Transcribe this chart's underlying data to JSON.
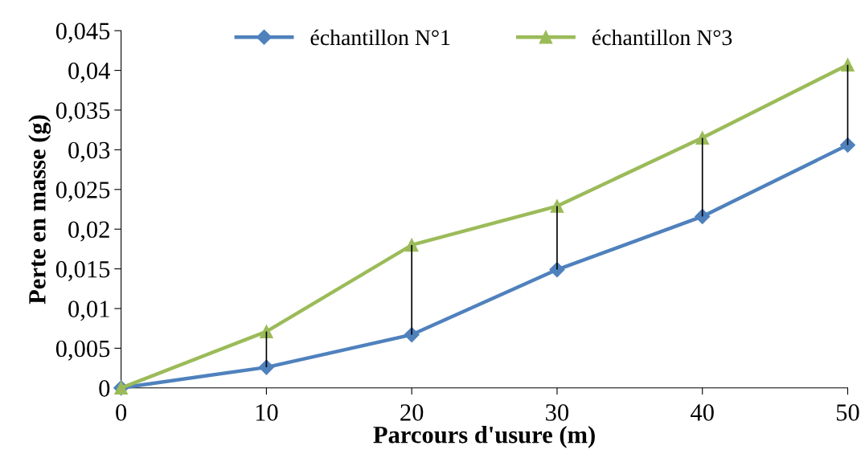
{
  "chart_data": {
    "type": "line",
    "xlabel": "Parcours d'usure (m)",
    "ylabel": "Perte en masse (g)",
    "x": [
      0,
      10,
      20,
      30,
      40,
      50
    ],
    "series": [
      {
        "name": "échantillon N°1",
        "color": "#4f81bd",
        "marker": "diamond",
        "values": [
          0,
          0.0026,
          0.0067,
          0.0149,
          0.0216,
          0.0306
        ]
      },
      {
        "name": "échantillon N°3",
        "color": "#9bbb59",
        "marker": "triangle",
        "values": [
          0,
          0.0071,
          0.018,
          0.0229,
          0.0315,
          0.0407
        ],
        "errors": [
          null,
          [
            0.0026,
            0.0071
          ],
          [
            0.0067,
            0.018
          ],
          [
            0.0149,
            0.0229
          ],
          [
            0.0216,
            0.0315
          ],
          [
            0.0306,
            0.0407
          ]
        ]
      }
    ],
    "xlim": [
      0,
      50
    ],
    "xticks": [
      0,
      10,
      20,
      30,
      40,
      50
    ],
    "ylim": [
      0,
      0.045
    ],
    "yticks": [
      {
        "value": 0,
        "label": "0"
      },
      {
        "value": 0.005,
        "label": "0,005"
      },
      {
        "value": 0.01,
        "label": "0,01"
      },
      {
        "value": 0.015,
        "label": "0,015"
      },
      {
        "value": 0.02,
        "label": "0,02"
      },
      {
        "value": 0.025,
        "label": "0,025"
      },
      {
        "value": 0.03,
        "label": "0,03"
      },
      {
        "value": 0.035,
        "label": "0,035"
      },
      {
        "value": 0.04,
        "label": "0,04"
      },
      {
        "value": 0.045,
        "label": "0,045"
      }
    ],
    "grid": false,
    "legend": "top",
    "line_style": "solid"
  }
}
